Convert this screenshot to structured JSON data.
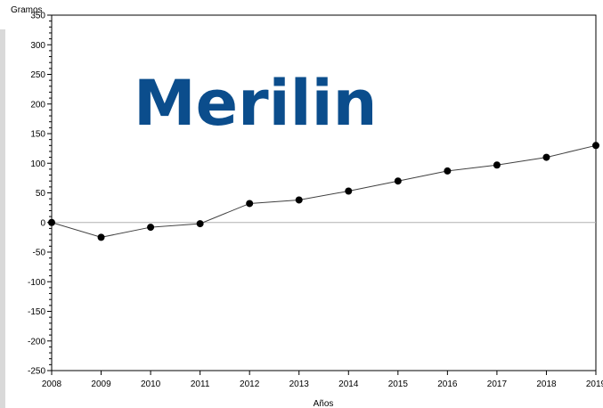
{
  "chart_data": {
    "type": "line",
    "title": "Merilin",
    "ylabel": "Gramos",
    "xlabel": "Años",
    "x": [
      "2008",
      "2009",
      "2010",
      "2011",
      "2012",
      "2013",
      "2014",
      "2015",
      "2016",
      "2017",
      "2018",
      "2019"
    ],
    "values": [
      0,
      -25,
      -8,
      -2,
      32,
      38,
      53,
      70,
      87,
      97,
      110,
      130
    ],
    "ylim": [
      -250,
      350
    ],
    "yticks": [
      "350",
      "300",
      "250",
      "200",
      "150",
      "100",
      "50",
      "0",
      "-50",
      "-100",
      "-150",
      "-200",
      "-250"
    ],
    "reference_line_y": 0,
    "grid": false,
    "colors": {
      "line": "#404040",
      "marker": "#000000",
      "title": "#0b4d8c",
      "zero_line": "#b0b0b0"
    }
  }
}
